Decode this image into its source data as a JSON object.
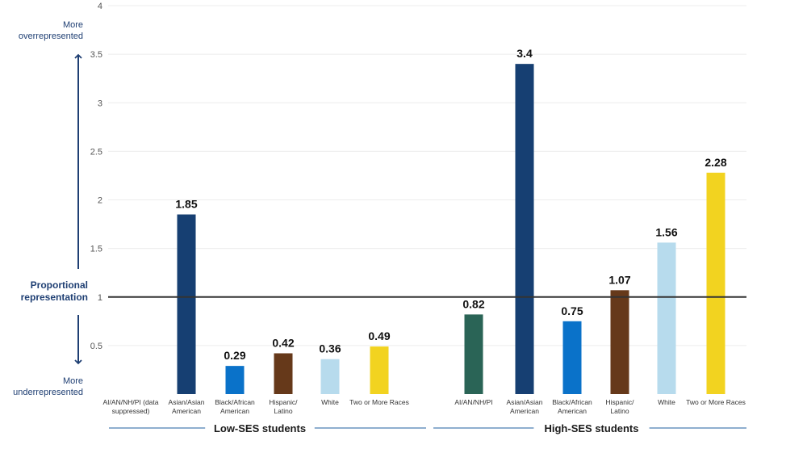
{
  "labels": {
    "more_over_1": "More",
    "more_over_2": "overrepresented",
    "proportional_1": "Proportional",
    "proportional_2": "representation",
    "more_under_1": "More",
    "more_under_2": "underrepresented"
  },
  "chart_data": {
    "type": "bar",
    "title": "",
    "xlabel": "",
    "ylabel": "",
    "ylim": [
      0,
      4
    ],
    "yticks": [
      "0.5",
      "1",
      "1.5",
      "2",
      "2.5",
      "3",
      "3.5",
      "4"
    ],
    "reference_line": 1,
    "groups": [
      {
        "name": "Low-SES students",
        "categories": [
          [
            "AI/AN/NH/PI (data",
            "suppressed)"
          ],
          [
            "Asian/Asian",
            "American"
          ],
          [
            "Black/African",
            "American"
          ],
          [
            "Hispanic/",
            "Latino"
          ],
          [
            "White"
          ],
          [
            "Two or More Races"
          ]
        ],
        "values": [
          null,
          1.85,
          0.29,
          0.42,
          0.36,
          0.49
        ],
        "value_labels": [
          "",
          "1.85",
          "0.29",
          "0.42",
          "0.36",
          "0.49"
        ]
      },
      {
        "name": "High-SES students",
        "categories": [
          [
            "AI/AN/NH/PI"
          ],
          [
            "Asian/Asian",
            "American"
          ],
          [
            "Black/African",
            "American"
          ],
          [
            "Hispanic/",
            "Latino"
          ],
          [
            "White"
          ],
          [
            "Two or More Races"
          ]
        ],
        "values": [
          0.82,
          3.4,
          0.75,
          1.07,
          1.56,
          2.28
        ],
        "value_labels": [
          "0.82",
          "3.4",
          "0.75",
          "1.07",
          "1.56",
          "2.28"
        ]
      }
    ],
    "category_colors": [
      "#2a6456",
      "#163f72",
      "#0a72c9",
      "#66391a",
      "#b7dbed",
      "#f2d320"
    ]
  }
}
